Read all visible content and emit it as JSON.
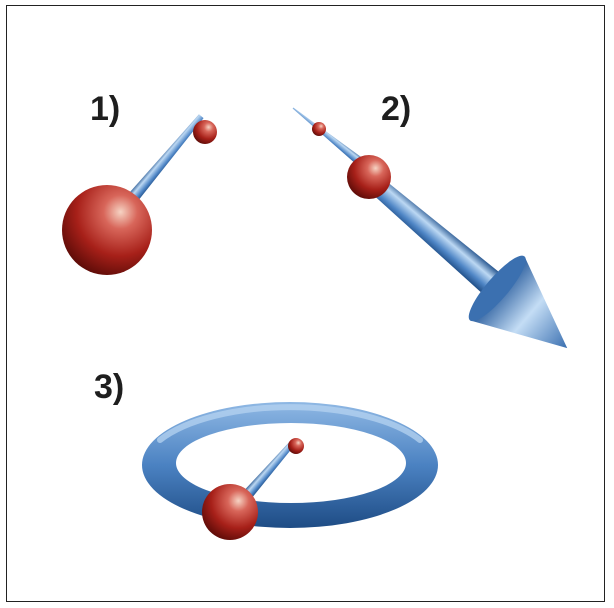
{
  "panels": [
    {
      "label": "1)"
    },
    {
      "label": "2)"
    },
    {
      "label": "3)"
    }
  ],
  "colors": {
    "sphere": "#b3261e",
    "sphere_highlight": "#f4c8b4",
    "rod": "#4f86c6",
    "rod_highlight": "#b9d6f2",
    "border": "#222222"
  }
}
